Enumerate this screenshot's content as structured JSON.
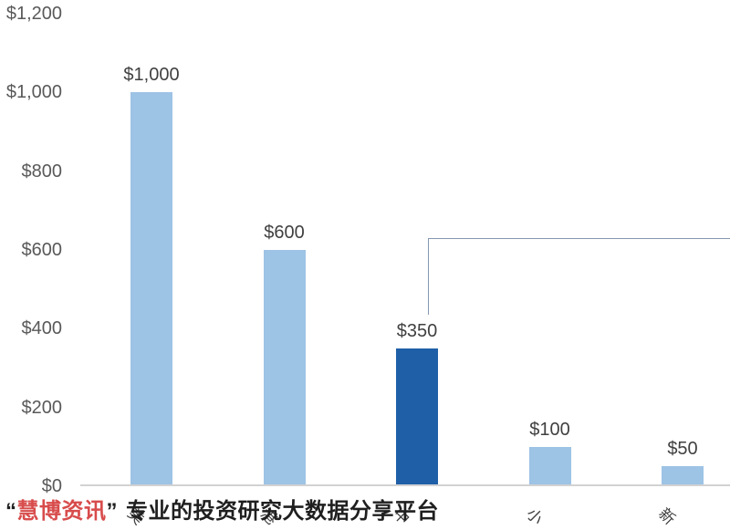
{
  "chart_data": {
    "type": "bar",
    "title": "",
    "xlabel": "",
    "ylabel": "",
    "categories": [
      "美",
      "港",
      "中",
      "小",
      "新"
    ],
    "values": [
      1000,
      600,
      350,
      100,
      50
    ],
    "data_labels": [
      "$1,000",
      "$600",
      "$350",
      "$100",
      "$50"
    ],
    "y_tick_labels": [
      "$1,200",
      "$1,000",
      "$800",
      "$600",
      "$400",
      "$200",
      "$0"
    ],
    "y_tick_values": [
      1200,
      1000,
      800,
      600,
      400,
      200,
      0
    ],
    "ylim": [
      0,
      1200
    ],
    "grid": false,
    "legend_position": "none",
    "bar_color": "#9dc3e5",
    "highlight_index": 2,
    "highlight_color": "#1f5fa8",
    "callout_line_color": "#8497b0",
    "axis_line_color": "#d2d2d2"
  },
  "watermark": {
    "quote_open": "“",
    "brand": "慧博资讯",
    "quote_close": "”",
    "tagline": "专业的投资研究大数据分享平台",
    "brand_color": "#d84c4c",
    "text_color": "#1f1f1f"
  },
  "colors": {
    "background": "#ffffff",
    "tick_label": "#595959",
    "data_label": "#404040",
    "category_label": "#3d3d3d"
  }
}
